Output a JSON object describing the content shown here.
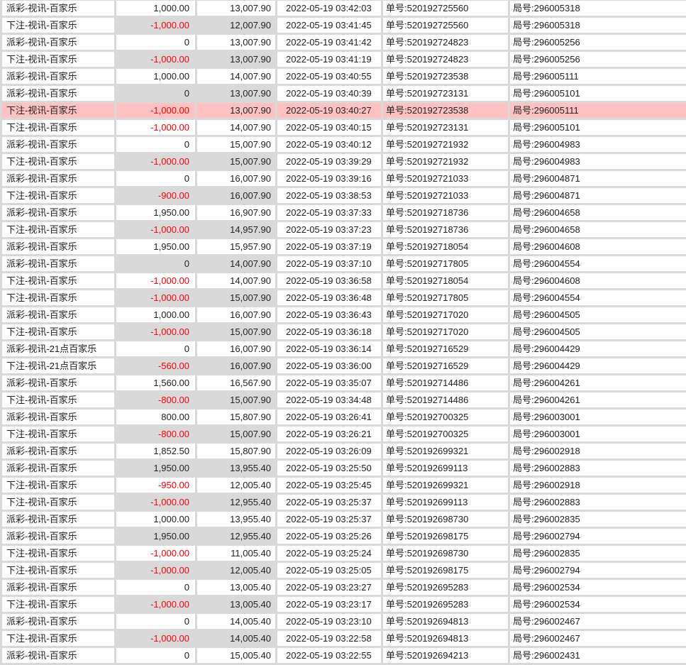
{
  "colors": {
    "shade": "#d9d9d9",
    "highlight": "#ffc1c1",
    "negative": "#ff0000"
  },
  "rows": [
    {
      "type": "派彩-视讯-百家乐",
      "amount": "1,000.00",
      "balance": "13,007.90",
      "time": "2022-05-19 03:42:03",
      "order": "单号:520192725560",
      "round": "局号:296005318",
      "state": "normal"
    },
    {
      "type": "下注-视讯-百家乐",
      "amount": "-1,000.00",
      "balance": "12,007.90",
      "time": "2022-05-19 03:41:45",
      "order": "单号:520192725560",
      "round": "局号:296005318",
      "state": "shade"
    },
    {
      "type": "派彩-视讯-百家乐",
      "amount": "0",
      "balance": "13,007.90",
      "time": "2022-05-19 03:41:42",
      "order": "单号:520192724823",
      "round": "局号:296005256",
      "state": "normal"
    },
    {
      "type": "下注-视讯-百家乐",
      "amount": "-1,000.00",
      "balance": "13,007.90",
      "time": "2022-05-19 03:41:19",
      "order": "单号:520192724823",
      "round": "局号:296005256",
      "state": "shade"
    },
    {
      "type": "派彩-视讯-百家乐",
      "amount": "1,000.00",
      "balance": "14,007.90",
      "time": "2022-05-19 03:40:55",
      "order": "单号:520192723538",
      "round": "局号:296005111",
      "state": "normal"
    },
    {
      "type": "派彩-视讯-百家乐",
      "amount": "0",
      "balance": "13,007.90",
      "time": "2022-05-19 03:40:39",
      "order": "单号:520192723131",
      "round": "局号:296005101",
      "state": "shade"
    },
    {
      "type": "下注-视讯-百家乐",
      "amount": "-1,000.00",
      "balance": "13,007.90",
      "time": "2022-05-19 03:40:27",
      "order": "单号:520192723538",
      "round": "局号:296005111",
      "state": "highlight"
    },
    {
      "type": "下注-视讯-百家乐",
      "amount": "-1,000.00",
      "balance": "14,007.90",
      "time": "2022-05-19 03:40:15",
      "order": "单号:520192723131",
      "round": "局号:296005101",
      "state": "normal"
    },
    {
      "type": "派彩-视讯-百家乐",
      "amount": "0",
      "balance": "15,007.90",
      "time": "2022-05-19 03:40:12",
      "order": "单号:520192721932",
      "round": "局号:296004983",
      "state": "normal"
    },
    {
      "type": "下注-视讯-百家乐",
      "amount": "-1,000.00",
      "balance": "15,007.90",
      "time": "2022-05-19 03:39:29",
      "order": "单号:520192721932",
      "round": "局号:296004983",
      "state": "shade"
    },
    {
      "type": "派彩-视讯-百家乐",
      "amount": "0",
      "balance": "16,007.90",
      "time": "2022-05-19 03:39:16",
      "order": "单号:520192721033",
      "round": "局号:296004871",
      "state": "normal"
    },
    {
      "type": "下注-视讯-百家乐",
      "amount": "-900.00",
      "balance": "16,007.90",
      "time": "2022-05-19 03:38:53",
      "order": "单号:520192721033",
      "round": "局号:296004871",
      "state": "shade"
    },
    {
      "type": "派彩-视讯-百家乐",
      "amount": "1,950.00",
      "balance": "16,907.90",
      "time": "2022-05-19 03:37:33",
      "order": "单号:520192718736",
      "round": "局号:296004658",
      "state": "normal"
    },
    {
      "type": "下注-视讯-百家乐",
      "amount": "-1,000.00",
      "balance": "14,957.90",
      "time": "2022-05-19 03:37:23",
      "order": "单号:520192718736",
      "round": "局号:296004658",
      "state": "shade"
    },
    {
      "type": "派彩-视讯-百家乐",
      "amount": "1,950.00",
      "balance": "15,957.90",
      "time": "2022-05-19 03:37:19",
      "order": "单号:520192718054",
      "round": "局号:296004608",
      "state": "normal"
    },
    {
      "type": "派彩-视讯-百家乐",
      "amount": "0",
      "balance": "14,007.90",
      "time": "2022-05-19 03:37:10",
      "order": "单号:520192717805",
      "round": "局号:296004554",
      "state": "shade"
    },
    {
      "type": "下注-视讯-百家乐",
      "amount": "-1,000.00",
      "balance": "14,007.90",
      "time": "2022-05-19 03:36:58",
      "order": "单号:520192718054",
      "round": "局号:296004608",
      "state": "normal"
    },
    {
      "type": "下注-视讯-百家乐",
      "amount": "-1,000.00",
      "balance": "15,007.90",
      "time": "2022-05-19 03:36:48",
      "order": "单号:520192717805",
      "round": "局号:296004554",
      "state": "shade"
    },
    {
      "type": "派彩-视讯-百家乐",
      "amount": "1,000.00",
      "balance": "16,007.90",
      "time": "2022-05-19 03:36:43",
      "order": "单号:520192717020",
      "round": "局号:296004505",
      "state": "normal"
    },
    {
      "type": "下注-视讯-百家乐",
      "amount": "-1,000.00",
      "balance": "15,007.90",
      "time": "2022-05-19 03:36:18",
      "order": "单号:520192717020",
      "round": "局号:296004505",
      "state": "shade"
    },
    {
      "type": "派彩-视讯-21点百家乐",
      "amount": "0",
      "balance": "16,007.90",
      "time": "2022-05-19 03:36:14",
      "order": "单号:520192716529",
      "round": "局号:296004429",
      "state": "normal"
    },
    {
      "type": "下注-视讯-21点百家乐",
      "amount": "-560.00",
      "balance": "16,007.90",
      "time": "2022-05-19 03:36:00",
      "order": "单号:520192716529",
      "round": "局号:296004429",
      "state": "shade"
    },
    {
      "type": "派彩-视讯-百家乐",
      "amount": "1,560.00",
      "balance": "16,567.90",
      "time": "2022-05-19 03:35:07",
      "order": "单号:520192714486",
      "round": "局号:296004261",
      "state": "normal"
    },
    {
      "type": "下注-视讯-百家乐",
      "amount": "-800.00",
      "balance": "15,007.90",
      "time": "2022-05-19 03:34:48",
      "order": "单号:520192714486",
      "round": "局号:296004261",
      "state": "shade"
    },
    {
      "type": "派彩-视讯-百家乐",
      "amount": "800.00",
      "balance": "15,807.90",
      "time": "2022-05-19 03:26:41",
      "order": "单号:520192700325",
      "round": "局号:296003001",
      "state": "normal"
    },
    {
      "type": "下注-视讯-百家乐",
      "amount": "-800.00",
      "balance": "15,007.90",
      "time": "2022-05-19 03:26:21",
      "order": "单号:520192700325",
      "round": "局号:296003001",
      "state": "shade"
    },
    {
      "type": "派彩-视讯-百家乐",
      "amount": "1,852.50",
      "balance": "15,807.90",
      "time": "2022-05-19 03:26:09",
      "order": "单号:520192699321",
      "round": "局号:296002918",
      "state": "normal"
    },
    {
      "type": "派彩-视讯-百家乐",
      "amount": "1,950.00",
      "balance": "13,955.40",
      "time": "2022-05-19 03:25:50",
      "order": "单号:520192699113",
      "round": "局号:296002883",
      "state": "shade"
    },
    {
      "type": "下注-视讯-百家乐",
      "amount": "-950.00",
      "balance": "12,005.40",
      "time": "2022-05-19 03:25:45",
      "order": "单号:520192699321",
      "round": "局号:296002918",
      "state": "normal"
    },
    {
      "type": "下注-视讯-百家乐",
      "amount": "-1,000.00",
      "balance": "12,955.40",
      "time": "2022-05-19 03:25:37",
      "order": "单号:520192699113",
      "round": "局号:296002883",
      "state": "shade"
    },
    {
      "type": "派彩-视讯-百家乐",
      "amount": "1,000.00",
      "balance": "13,955.40",
      "time": "2022-05-19 03:25:37",
      "order": "单号:520192698730",
      "round": "局号:296002835",
      "state": "normal"
    },
    {
      "type": "派彩-视讯-百家乐",
      "amount": "1,950.00",
      "balance": "12,955.40",
      "time": "2022-05-19 03:25:26",
      "order": "单号:520192698175",
      "round": "局号:296002794",
      "state": "shade"
    },
    {
      "type": "下注-视讯-百家乐",
      "amount": "-1,000.00",
      "balance": "11,005.40",
      "time": "2022-05-19 03:25:24",
      "order": "单号:520192698730",
      "round": "局号:296002835",
      "state": "normal"
    },
    {
      "type": "下注-视讯-百家乐",
      "amount": "-1,000.00",
      "balance": "12,005.40",
      "time": "2022-05-19 03:25:05",
      "order": "单号:520192698175",
      "round": "局号:296002794",
      "state": "shade"
    },
    {
      "type": "派彩-视讯-百家乐",
      "amount": "0",
      "balance": "13,005.40",
      "time": "2022-05-19 03:23:27",
      "order": "单号:520192695283",
      "round": "局号:296002534",
      "state": "normal"
    },
    {
      "type": "下注-视讯-百家乐",
      "amount": "-1,000.00",
      "balance": "13,005.40",
      "time": "2022-05-19 03:23:17",
      "order": "单号:520192695283",
      "round": "局号:296002534",
      "state": "shade"
    },
    {
      "type": "派彩-视讯-百家乐",
      "amount": "0",
      "balance": "14,005.40",
      "time": "2022-05-19 03:23:10",
      "order": "单号:520192694813",
      "round": "局号:296002467",
      "state": "normal"
    },
    {
      "type": "下注-视讯-百家乐",
      "amount": "-1,000.00",
      "balance": "14,005.40",
      "time": "2022-05-19 03:22:58",
      "order": "单号:520192694813",
      "round": "局号:296002467",
      "state": "shade"
    },
    {
      "type": "派彩-视讯-百家乐",
      "amount": "0",
      "balance": "15,005.40",
      "time": "2022-05-19 03:22:55",
      "order": "单号:520192694213",
      "round": "局号:296002431",
      "state": "normal"
    }
  ]
}
